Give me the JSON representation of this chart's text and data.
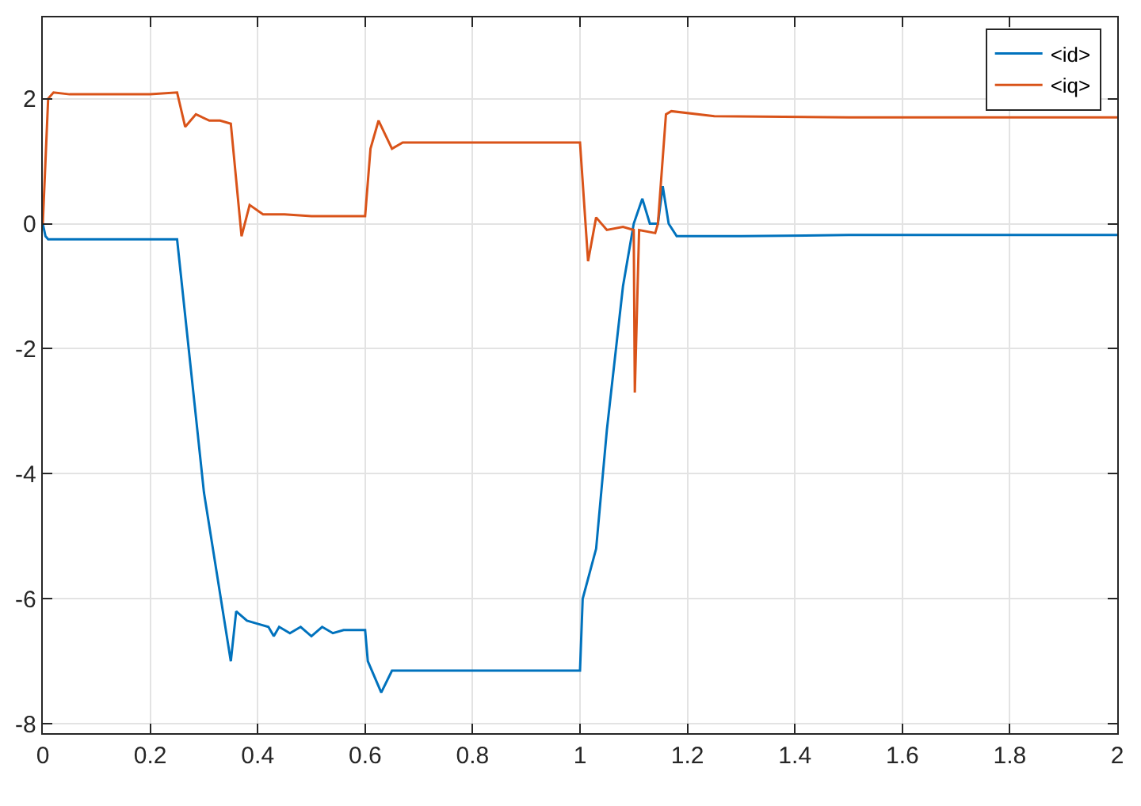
{
  "chart_data": {
    "type": "line",
    "x": [
      0,
      0.005,
      0.01,
      0.03,
      0.06,
      0.1,
      0.15,
      0.2,
      0.25,
      0.3,
      0.35,
      0.36,
      0.38,
      0.4,
      0.42,
      0.43,
      0.44,
      0.46,
      0.48,
      0.5,
      0.52,
      0.54,
      0.56,
      0.58,
      0.6,
      0.605,
      0.63,
      0.65,
      0.7,
      0.75,
      0.8,
      0.85,
      0.9,
      0.95,
      1.0,
      1.005,
      1.03,
      1.05,
      1.08,
      1.1,
      1.116,
      1.13,
      1.145,
      1.154,
      1.165,
      1.18,
      1.3,
      1.5,
      1.7,
      2.0
    ],
    "series": [
      {
        "name": "<id>",
        "color": "#0072bd",
        "values": [
          0,
          -0.2,
          -0.25,
          -0.25,
          -0.25,
          -0.25,
          -0.25,
          -0.25,
          -0.25,
          -4.3,
          -7.0,
          -6.2,
          -6.35,
          -6.4,
          -6.45,
          -6.6,
          -6.45,
          -6.55,
          -6.45,
          -6.6,
          -6.45,
          -6.55,
          -6.5,
          -6.5,
          -6.5,
          -7.0,
          -7.5,
          -7.15,
          -7.15,
          -7.15,
          -7.15,
          -7.15,
          -7.15,
          -7.15,
          -7.15,
          -6.0,
          -5.2,
          -3.3,
          -1.0,
          0.0,
          0.4,
          0.0,
          0.0,
          0.6,
          0.0,
          -0.2,
          -0.2,
          -0.18,
          -0.18,
          -0.18
        ]
      },
      {
        "name": "<iq>",
        "color": "#d95319",
        "x": [
          0,
          0.01,
          0.02,
          0.05,
          0.1,
          0.15,
          0.2,
          0.25,
          0.265,
          0.285,
          0.31,
          0.33,
          0.35,
          0.37,
          0.385,
          0.41,
          0.45,
          0.5,
          0.55,
          0.6,
          0.61,
          0.625,
          0.65,
          0.67,
          0.75,
          0.85,
          0.95,
          1.0,
          1.015,
          1.03,
          1.05,
          1.08,
          1.1,
          1.102,
          1.11,
          1.14,
          1.145,
          1.16,
          1.17,
          1.25,
          1.5,
          2.0
        ],
        "values": [
          0,
          2.0,
          2.1,
          2.07,
          2.07,
          2.07,
          2.07,
          2.1,
          1.55,
          1.75,
          1.65,
          1.65,
          1.6,
          -0.2,
          0.3,
          0.15,
          0.15,
          0.12,
          0.12,
          0.12,
          1.2,
          1.65,
          1.2,
          1.3,
          1.3,
          1.3,
          1.3,
          1.3,
          -0.6,
          0.1,
          -0.1,
          -0.05,
          -0.1,
          -2.7,
          -0.1,
          -0.15,
          0.0,
          1.75,
          1.8,
          1.72,
          1.7,
          1.7
        ]
      }
    ],
    "xlim": [
      0,
      2
    ],
    "xticks": [
      0,
      0.2,
      0.4,
      0.6,
      0.8,
      1,
      1.2,
      1.4,
      1.6,
      1.8,
      2
    ],
    "ylim": [
      -8.15,
      3.3
    ],
    "yticks": [
      -8,
      -6,
      -4,
      -2,
      0,
      2
    ],
    "grid": true,
    "legend": "top right",
    "marker": "none",
    "line_style": "solid"
  }
}
